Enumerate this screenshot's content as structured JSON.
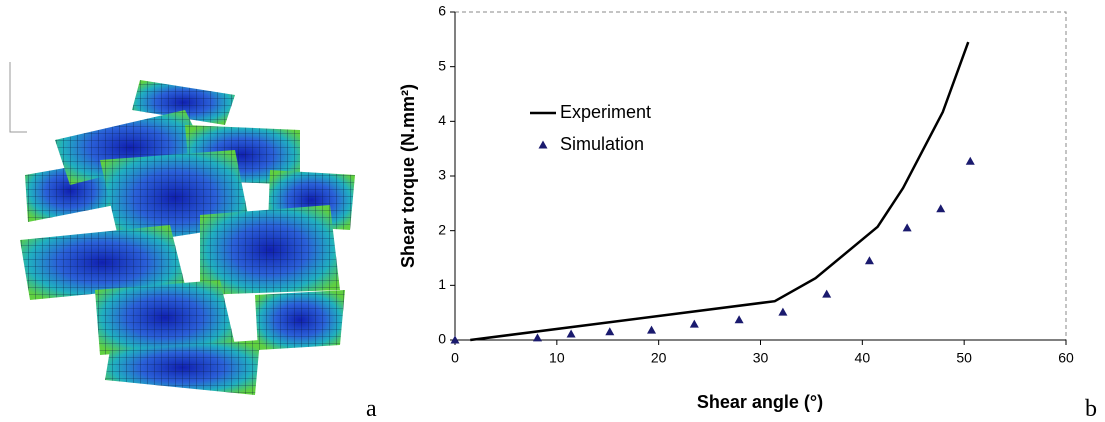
{
  "panel_labels": [
    "a",
    "b"
  ],
  "chart_data": {
    "type": "line",
    "x_label": "Shear angle (°)",
    "y_label": "Shear torque (N.mm²)",
    "xlim": [
      0,
      60
    ],
    "xticks": [
      0,
      10,
      20,
      30,
      40,
      50,
      60
    ],
    "ylim": [
      0,
      6
    ],
    "yticks": [
      0,
      1,
      2,
      3,
      4,
      5,
      6
    ],
    "series": [
      {
        "name": "Experiment",
        "style": "line",
        "color": "#000000",
        "x": [
          1.5,
          31.4,
          35.4,
          41.5,
          44.0,
          47.9,
          50.4
        ],
        "values": [
          0,
          0.71,
          1.13,
          2.07,
          2.78,
          4.17,
          5.45
        ]
      },
      {
        "name": "Simulation",
        "style": "marker",
        "color": "#1a1a6e",
        "x": [
          0,
          8.1,
          11.4,
          15.2,
          19.3,
          23.5,
          27.9,
          32.2,
          36.5,
          40.7,
          44.4,
          47.7,
          50.6
        ],
        "values": [
          0,
          0.04,
          0.11,
          0.15,
          0.18,
          0.29,
          0.37,
          0.51,
          0.84,
          1.45,
          2.05,
          2.4,
          3.27
        ]
      }
    ]
  }
}
